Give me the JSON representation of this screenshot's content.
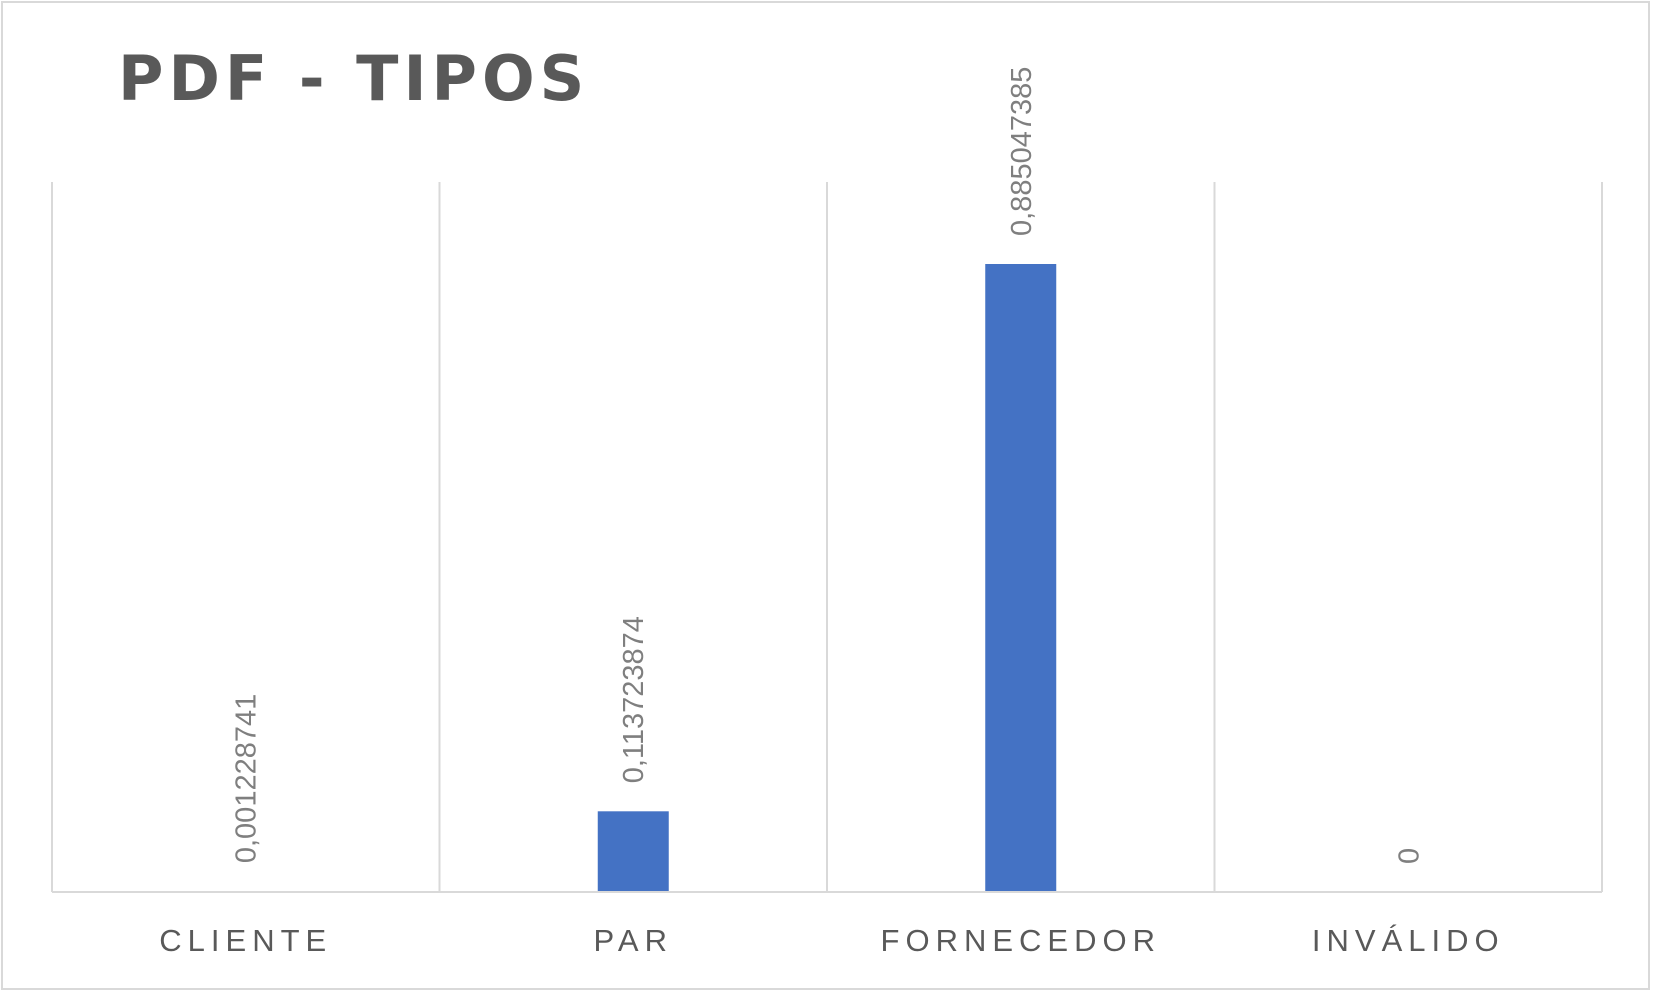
{
  "chart_data": {
    "type": "bar",
    "title": "PDF - TIPOS",
    "xlabel": "",
    "ylabel": "",
    "categories": [
      "CLIENTE",
      "PAR",
      "FORNECEDOR",
      "INVÁLIDO"
    ],
    "values": [
      0.001228741,
      0.113723874,
      0.885047385,
      0
    ],
    "data_labels": [
      "0,001228741",
      "0,113723874",
      "0,885047385",
      "0"
    ],
    "ylim": [
      0,
      1
    ],
    "grid": "vertical category separators",
    "legend": "none",
    "colors": {
      "bar": "#4472c4",
      "grid": "#d9d9d9",
      "axis": "#d9d9d9",
      "title": "#595959",
      "labels": "#595959",
      "data_labels": "#7f7f7f"
    }
  }
}
